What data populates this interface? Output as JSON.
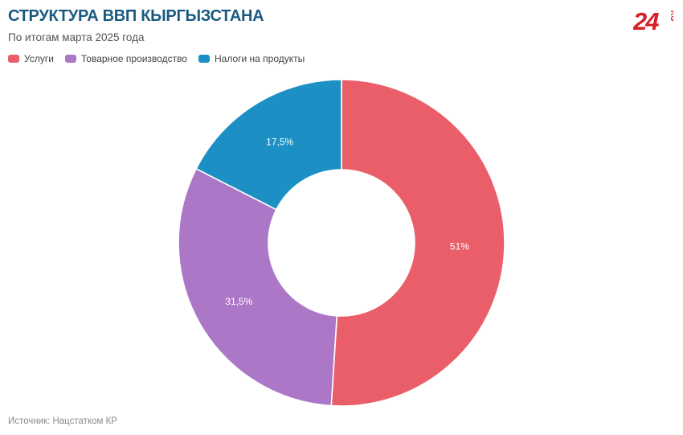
{
  "header": {
    "title": "СТРУКТУРА ВВП КЫРГЫЗСТАНА",
    "subtitle": "По итогам марта 2025 года"
  },
  "logo": {
    "text": "24",
    "suffix": "KG",
    "color": "#d81f2a"
  },
  "legend": [
    {
      "label": "Услуги",
      "color": "#e95e69"
    },
    {
      "label": "Товарное производство",
      "color": "#ad77c8"
    },
    {
      "label": "Налоги на продукты",
      "color": "#1c90c4"
    }
  ],
  "chart_data": {
    "type": "pie",
    "donut": true,
    "title": "СТРУКТУРА ВВП КЫРГЫЗСТАНА",
    "subtitle": "По итогам марта 2025 года",
    "categories": [
      "Услуги",
      "Товарное производство",
      "Налоги на продукты"
    ],
    "values": [
      51,
      31.5,
      17.5
    ],
    "labels": [
      "51%",
      "31,5%",
      "17,5%"
    ],
    "colors": [
      "#e95e69",
      "#ad77c8",
      "#1c90c4"
    ],
    "legend_position": "top-left"
  },
  "footer": {
    "source": "Источник: Нацстатком КР"
  }
}
